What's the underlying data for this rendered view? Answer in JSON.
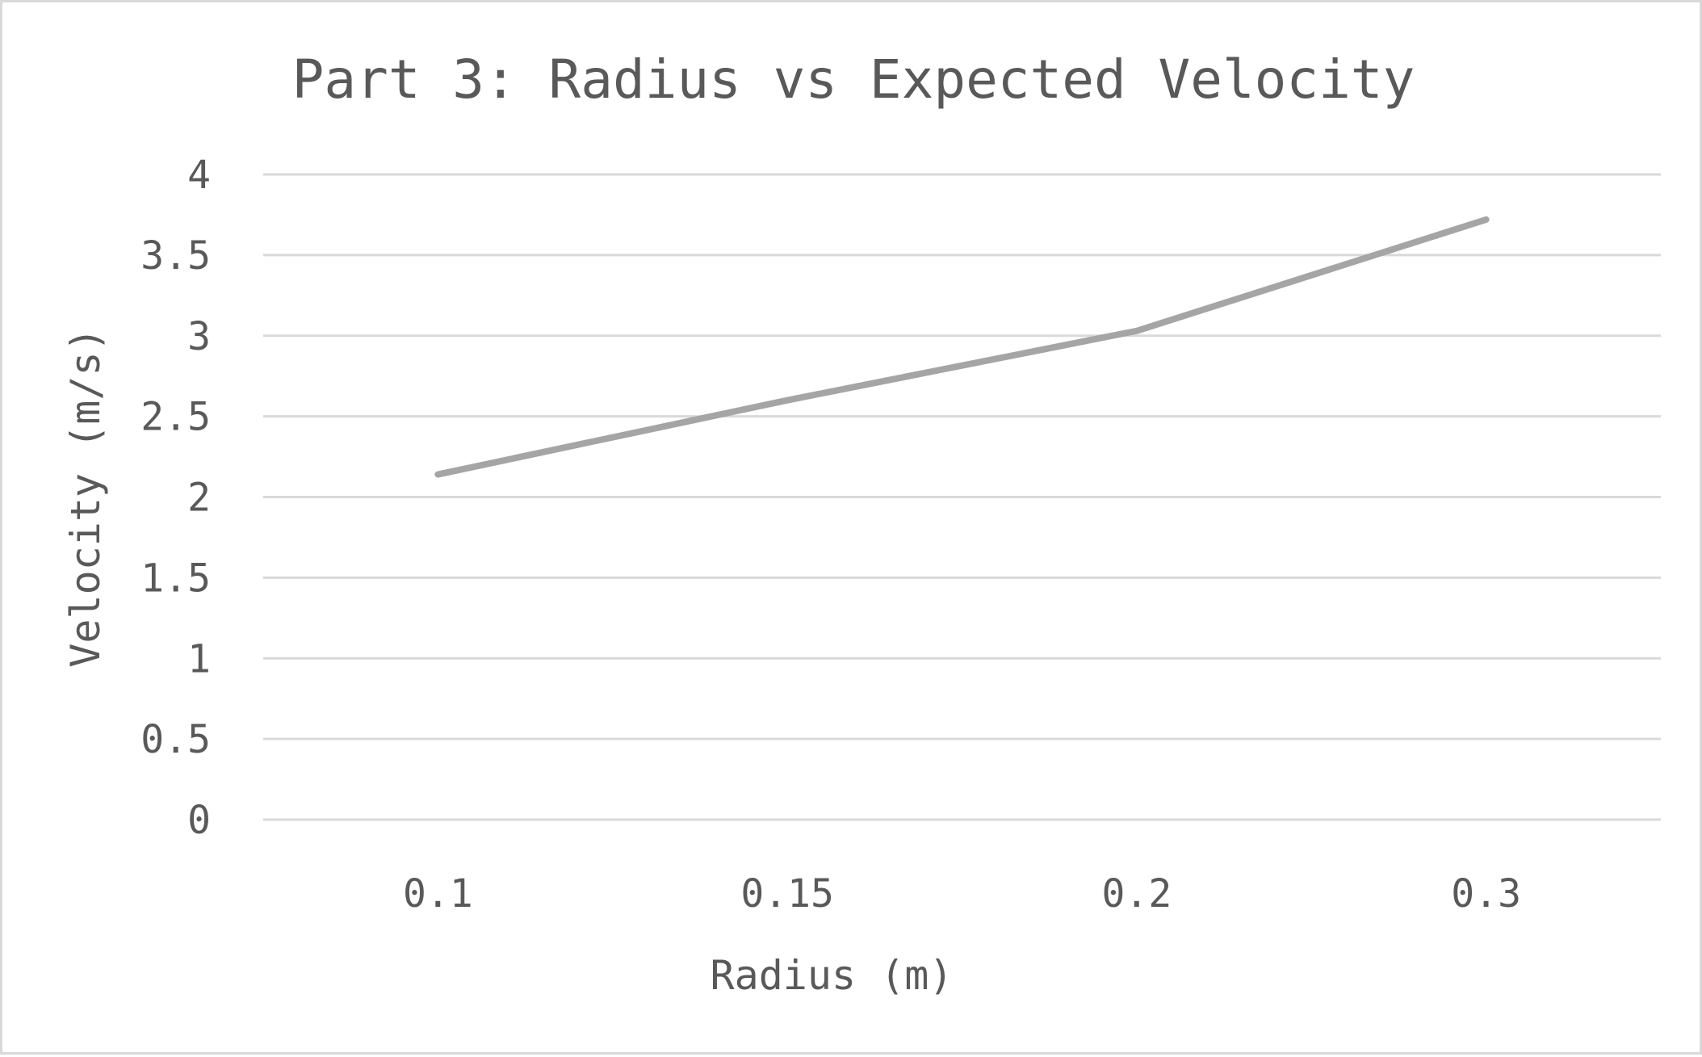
{
  "chart_data": {
    "type": "line",
    "title": "Part 3: Radius vs Expected Velocity",
    "xlabel": "Radius (m)",
    "ylabel": "Velocity (m/s)",
    "categories": [
      "0.1",
      "0.15",
      "0.2",
      "0.3"
    ],
    "series": [
      {
        "values": [
          2.14,
          2.6,
          3.03,
          3.72
        ]
      }
    ],
    "yticks": [
      "0",
      "0.5",
      "1",
      "1.5",
      "2",
      "2.5",
      "3",
      "3.5",
      "4"
    ],
    "ylim": [
      0,
      4
    ],
    "grid": true,
    "legend": "none",
    "colors": {
      "series": "#a5a5a5",
      "grid": "#d9d9d9",
      "text": "#595959",
      "border": "#d9d9d9"
    }
  }
}
